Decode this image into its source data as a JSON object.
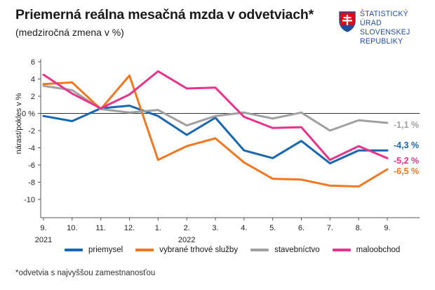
{
  "header": {
    "title": "Priemerná reálna mesačná mzda v odvetviach*",
    "subtitle": "(medziročná zmena v %)"
  },
  "logo": {
    "lines": [
      "ŠTATISTICKÝ",
      "ÚRAD",
      "SLOVENSKEJ",
      "REPUBLIKY"
    ],
    "colors": {
      "red": "#e30613",
      "blue": "#1f4e9a"
    }
  },
  "footnote": "*odvetvia s najvyššou zamestnanosťou",
  "chart_data": {
    "type": "line",
    "ylabel": "nárast/pokles v %",
    "ylim": [
      -10,
      6
    ],
    "yticks": [
      6,
      4,
      2,
      0,
      -2,
      -4,
      -6,
      -8,
      -10
    ],
    "ytick_labels": [
      "6",
      "4",
      "2",
      "0 %",
      "-2",
      "-4",
      "-6",
      "-8",
      "-10"
    ],
    "categories": [
      "9.",
      "10.",
      "11.",
      "12.",
      "1.",
      "2.",
      "3.",
      "4.",
      "5.",
      "6.",
      "7.",
      "8.",
      "9."
    ],
    "year_labels": [
      {
        "index": 0,
        "label": "2021"
      },
      {
        "index": 5,
        "label": "2022"
      }
    ],
    "grid": false,
    "legend": "bottom",
    "series": [
      {
        "name": "priemysel",
        "color": "#1a66b0",
        "values": [
          -0.3,
          -0.9,
          0.6,
          0.9,
          -0.3,
          -2.5,
          -0.5,
          -4.3,
          -5.2,
          -3.2,
          -5.8,
          -4.3,
          -4.3
        ],
        "end_label": "-4,3 %"
      },
      {
        "name": "vybrané trhové služby",
        "color": "#f07820",
        "values": [
          3.4,
          3.6,
          0.5,
          4.4,
          -5.4,
          -3.8,
          -2.9,
          -5.7,
          -7.6,
          -7.7,
          -8.4,
          -8.5,
          -6.5
        ],
        "end_label": "-6,5 %"
      },
      {
        "name": "stavebníctvo",
        "color": "#a0a0a0",
        "values": [
          3.2,
          2.7,
          0.5,
          0.1,
          0.4,
          -1.4,
          -0.3,
          0.1,
          -0.6,
          0.1,
          -2.0,
          -0.8,
          -1.1
        ],
        "end_label": "-1,1 %"
      },
      {
        "name": "maloobchod",
        "color": "#e8338a",
        "values": [
          4.5,
          2.3,
          0.6,
          2.2,
          4.9,
          2.9,
          3.0,
          -0.4,
          -1.7,
          -1.6,
          -5.4,
          -3.8,
          -5.2
        ],
        "end_label": "-5,2 %"
      }
    ]
  }
}
